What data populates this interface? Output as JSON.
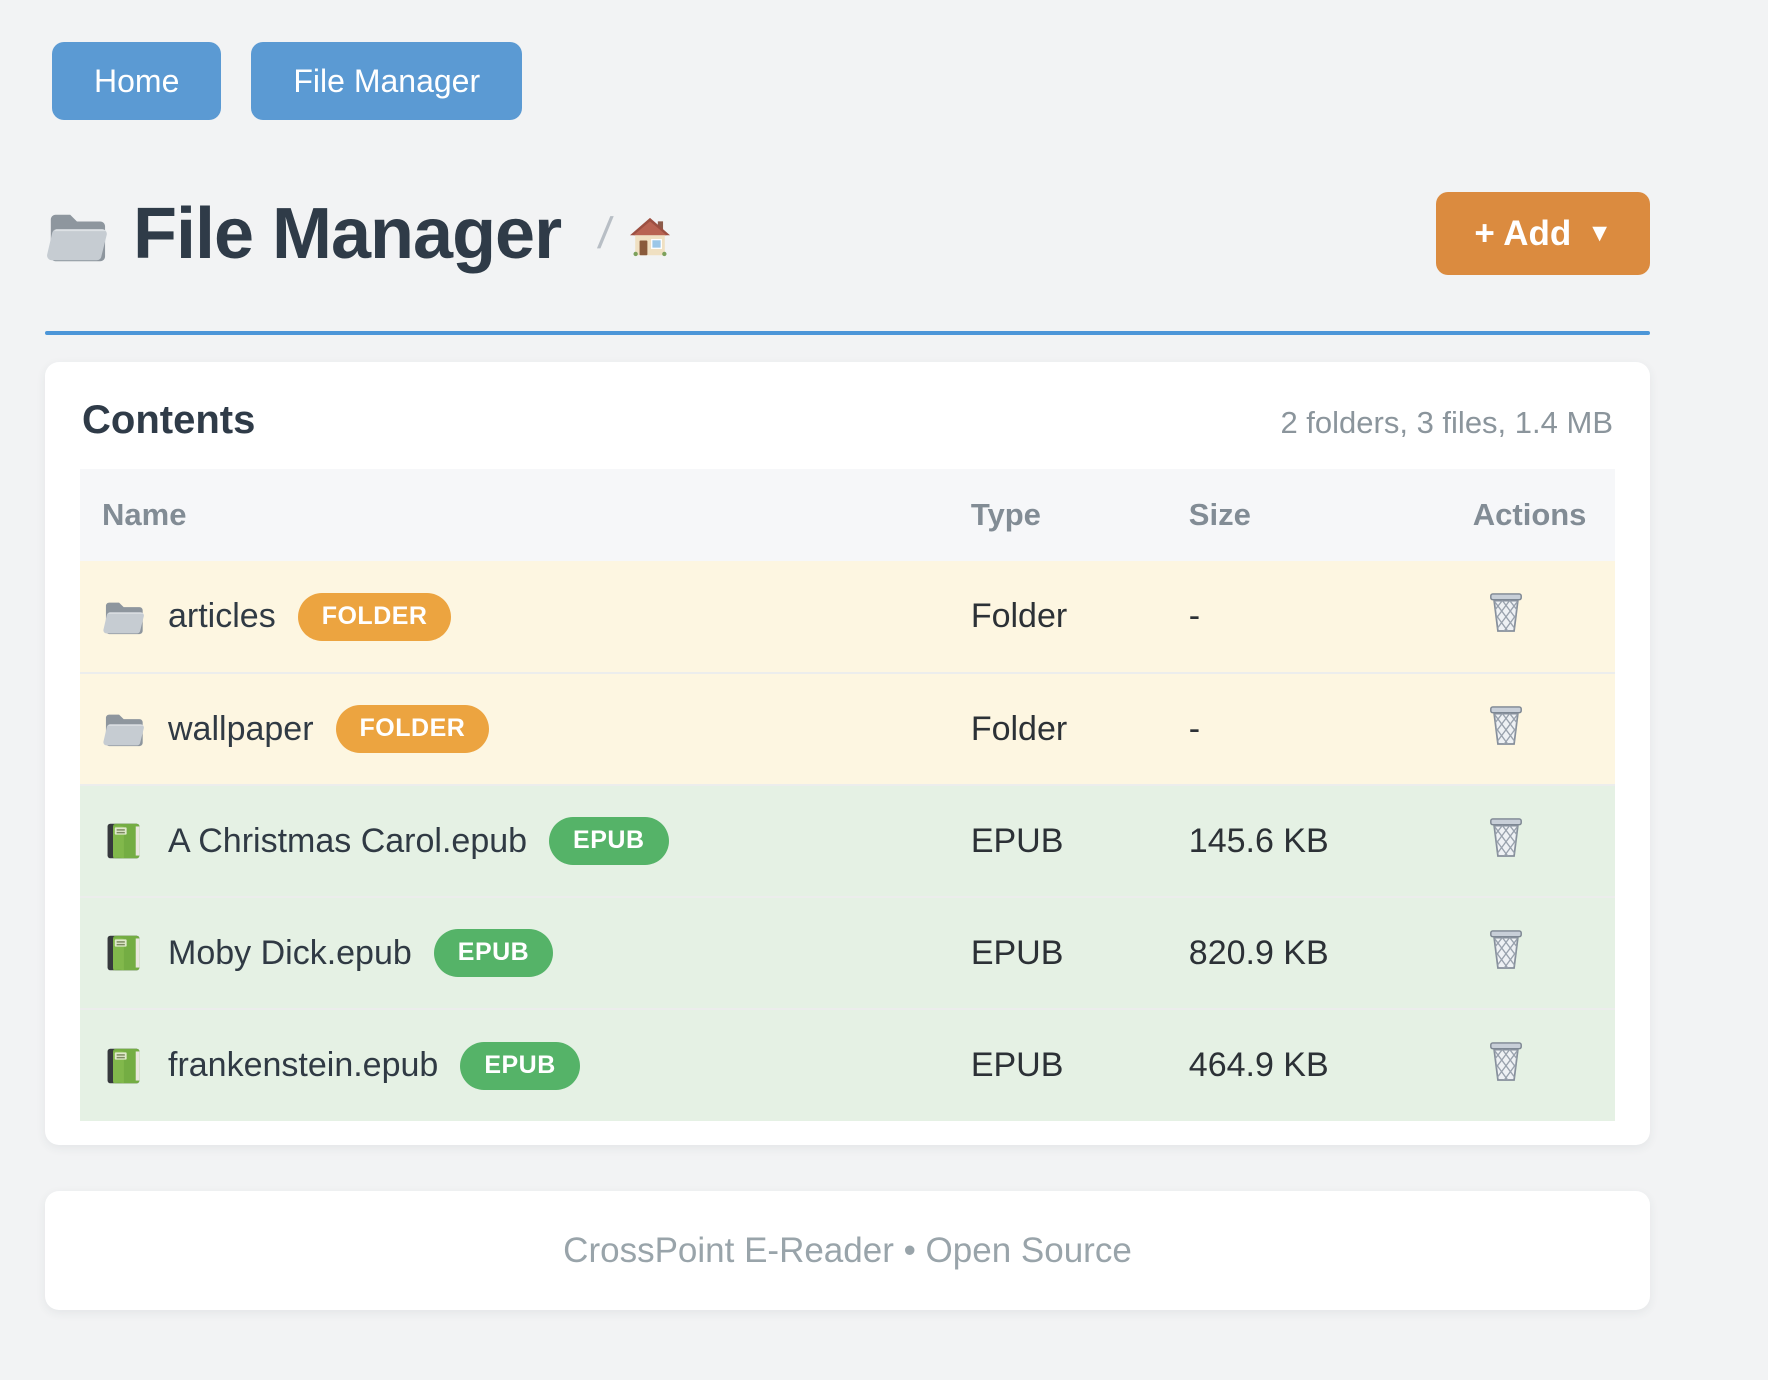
{
  "nav": {
    "buttons": [
      {
        "label": "Home"
      },
      {
        "label": "File Manager"
      }
    ]
  },
  "header": {
    "title": "File Manager",
    "breadcrumb_separator": "/",
    "add_button_label": "+ Add",
    "add_button_caret": "▼"
  },
  "contents": {
    "title": "Contents",
    "summary": "2 folders, 3 files, 1.4 MB",
    "columns": [
      "Name",
      "Type",
      "Size",
      "Actions"
    ],
    "rows": [
      {
        "name": "articles",
        "badge": "FOLDER",
        "kind": "folder",
        "type": "Folder",
        "size": "-"
      },
      {
        "name": "wallpaper",
        "badge": "FOLDER",
        "kind": "folder",
        "type": "Folder",
        "size": "-"
      },
      {
        "name": "A Christmas Carol.epub",
        "badge": "EPUB",
        "kind": "epub",
        "type": "EPUB",
        "size": "145.6 KB"
      },
      {
        "name": "Moby Dick.epub",
        "badge": "EPUB",
        "kind": "epub",
        "type": "EPUB",
        "size": "820.9 KB"
      },
      {
        "name": "frankenstein.epub",
        "badge": "EPUB",
        "kind": "epub",
        "type": "EPUB",
        "size": "464.9 KB"
      }
    ]
  },
  "footer": {
    "text": "CrossPoint E-Reader • Open Source"
  },
  "icons": {
    "title": "folder-icon",
    "breadcrumb": "home-icon",
    "folder_row": "folder-icon",
    "epub_row": "book-icon",
    "action": "wastebasket-icon"
  },
  "colors": {
    "page_background": "#f2f3f4",
    "primary_button": "#5b9ad3",
    "divider": "#4c96d8",
    "add_button": "#db8b3f",
    "folder_badge": "#eca440",
    "epub_badge": "#55b368",
    "folder_row_tint": "#fdf6e1",
    "epub_row_tint": "#e5f1e4"
  }
}
